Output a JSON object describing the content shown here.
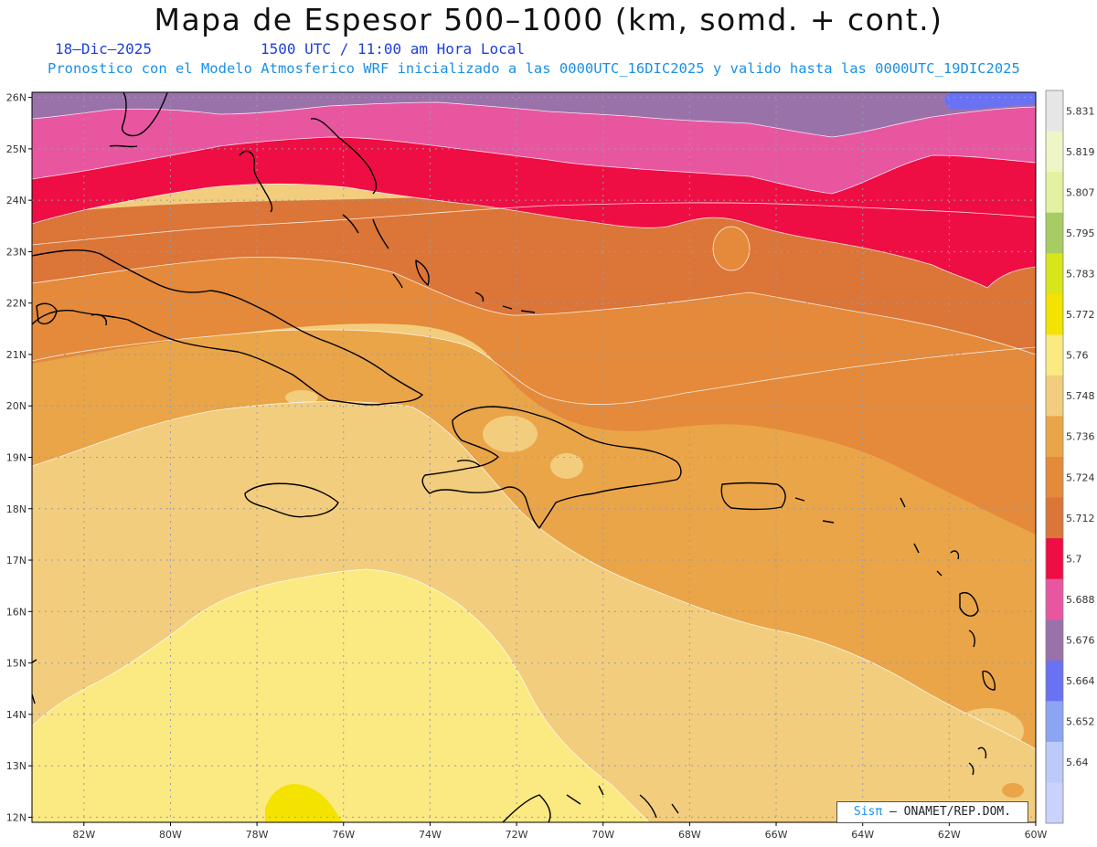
{
  "header": {
    "title": "Mapa de Espesor 500–1000 (km, somd. + cont.)",
    "date": "18–Dic–2025",
    "time": "1500 UTC / 11:00 am Hora Local",
    "subtitle": "Pronostico con el Modelo Atmosferico WRF inicializado a las 0000UTC_16DIC2025 y valido hasta las  0000UTC_19DIC2025"
  },
  "map": {
    "lon_ticks": [
      "82W",
      "80W",
      "78W",
      "76W",
      "74W",
      "72W",
      "70W",
      "68W",
      "66W",
      "64W",
      "62W",
      "60W"
    ],
    "lat_ticks": [
      "26N",
      "25N",
      "24N",
      "23N",
      "22N",
      "21N",
      "20N",
      "19N",
      "18N",
      "17N",
      "16N",
      "15N",
      "14N",
      "13N",
      "12N"
    ],
    "lon_range": [
      -83.2,
      -60
    ],
    "lat_range": [
      11.9,
      26.1
    ],
    "grid": true
  },
  "legend": {
    "labels": [
      "5.831",
      "5.819",
      "5.807",
      "5.795",
      "5.783",
      "5.772",
      "5.76",
      "5.748",
      "5.736",
      "5.724",
      "5.712",
      "5.7",
      "5.688",
      "5.676",
      "5.664",
      "5.652",
      "5.64"
    ],
    "colors": [
      "#e6e6e6",
      "#f0f5c8",
      "#e2f2a0",
      "#a8cc64",
      "#d6e61a",
      "#f4e200",
      "#fbe982",
      "#f2cd7d",
      "#eaa548",
      "#e48a3a",
      "#db7538",
      "#ee0e44",
      "#e856a0",
      "#9a72aa",
      "#6a72f4",
      "#8ca4f4",
      "#bccafa"
    ]
  },
  "credit": {
    "brand": "Sisπ",
    "org": " – ONAMET/REP.DOM."
  }
}
